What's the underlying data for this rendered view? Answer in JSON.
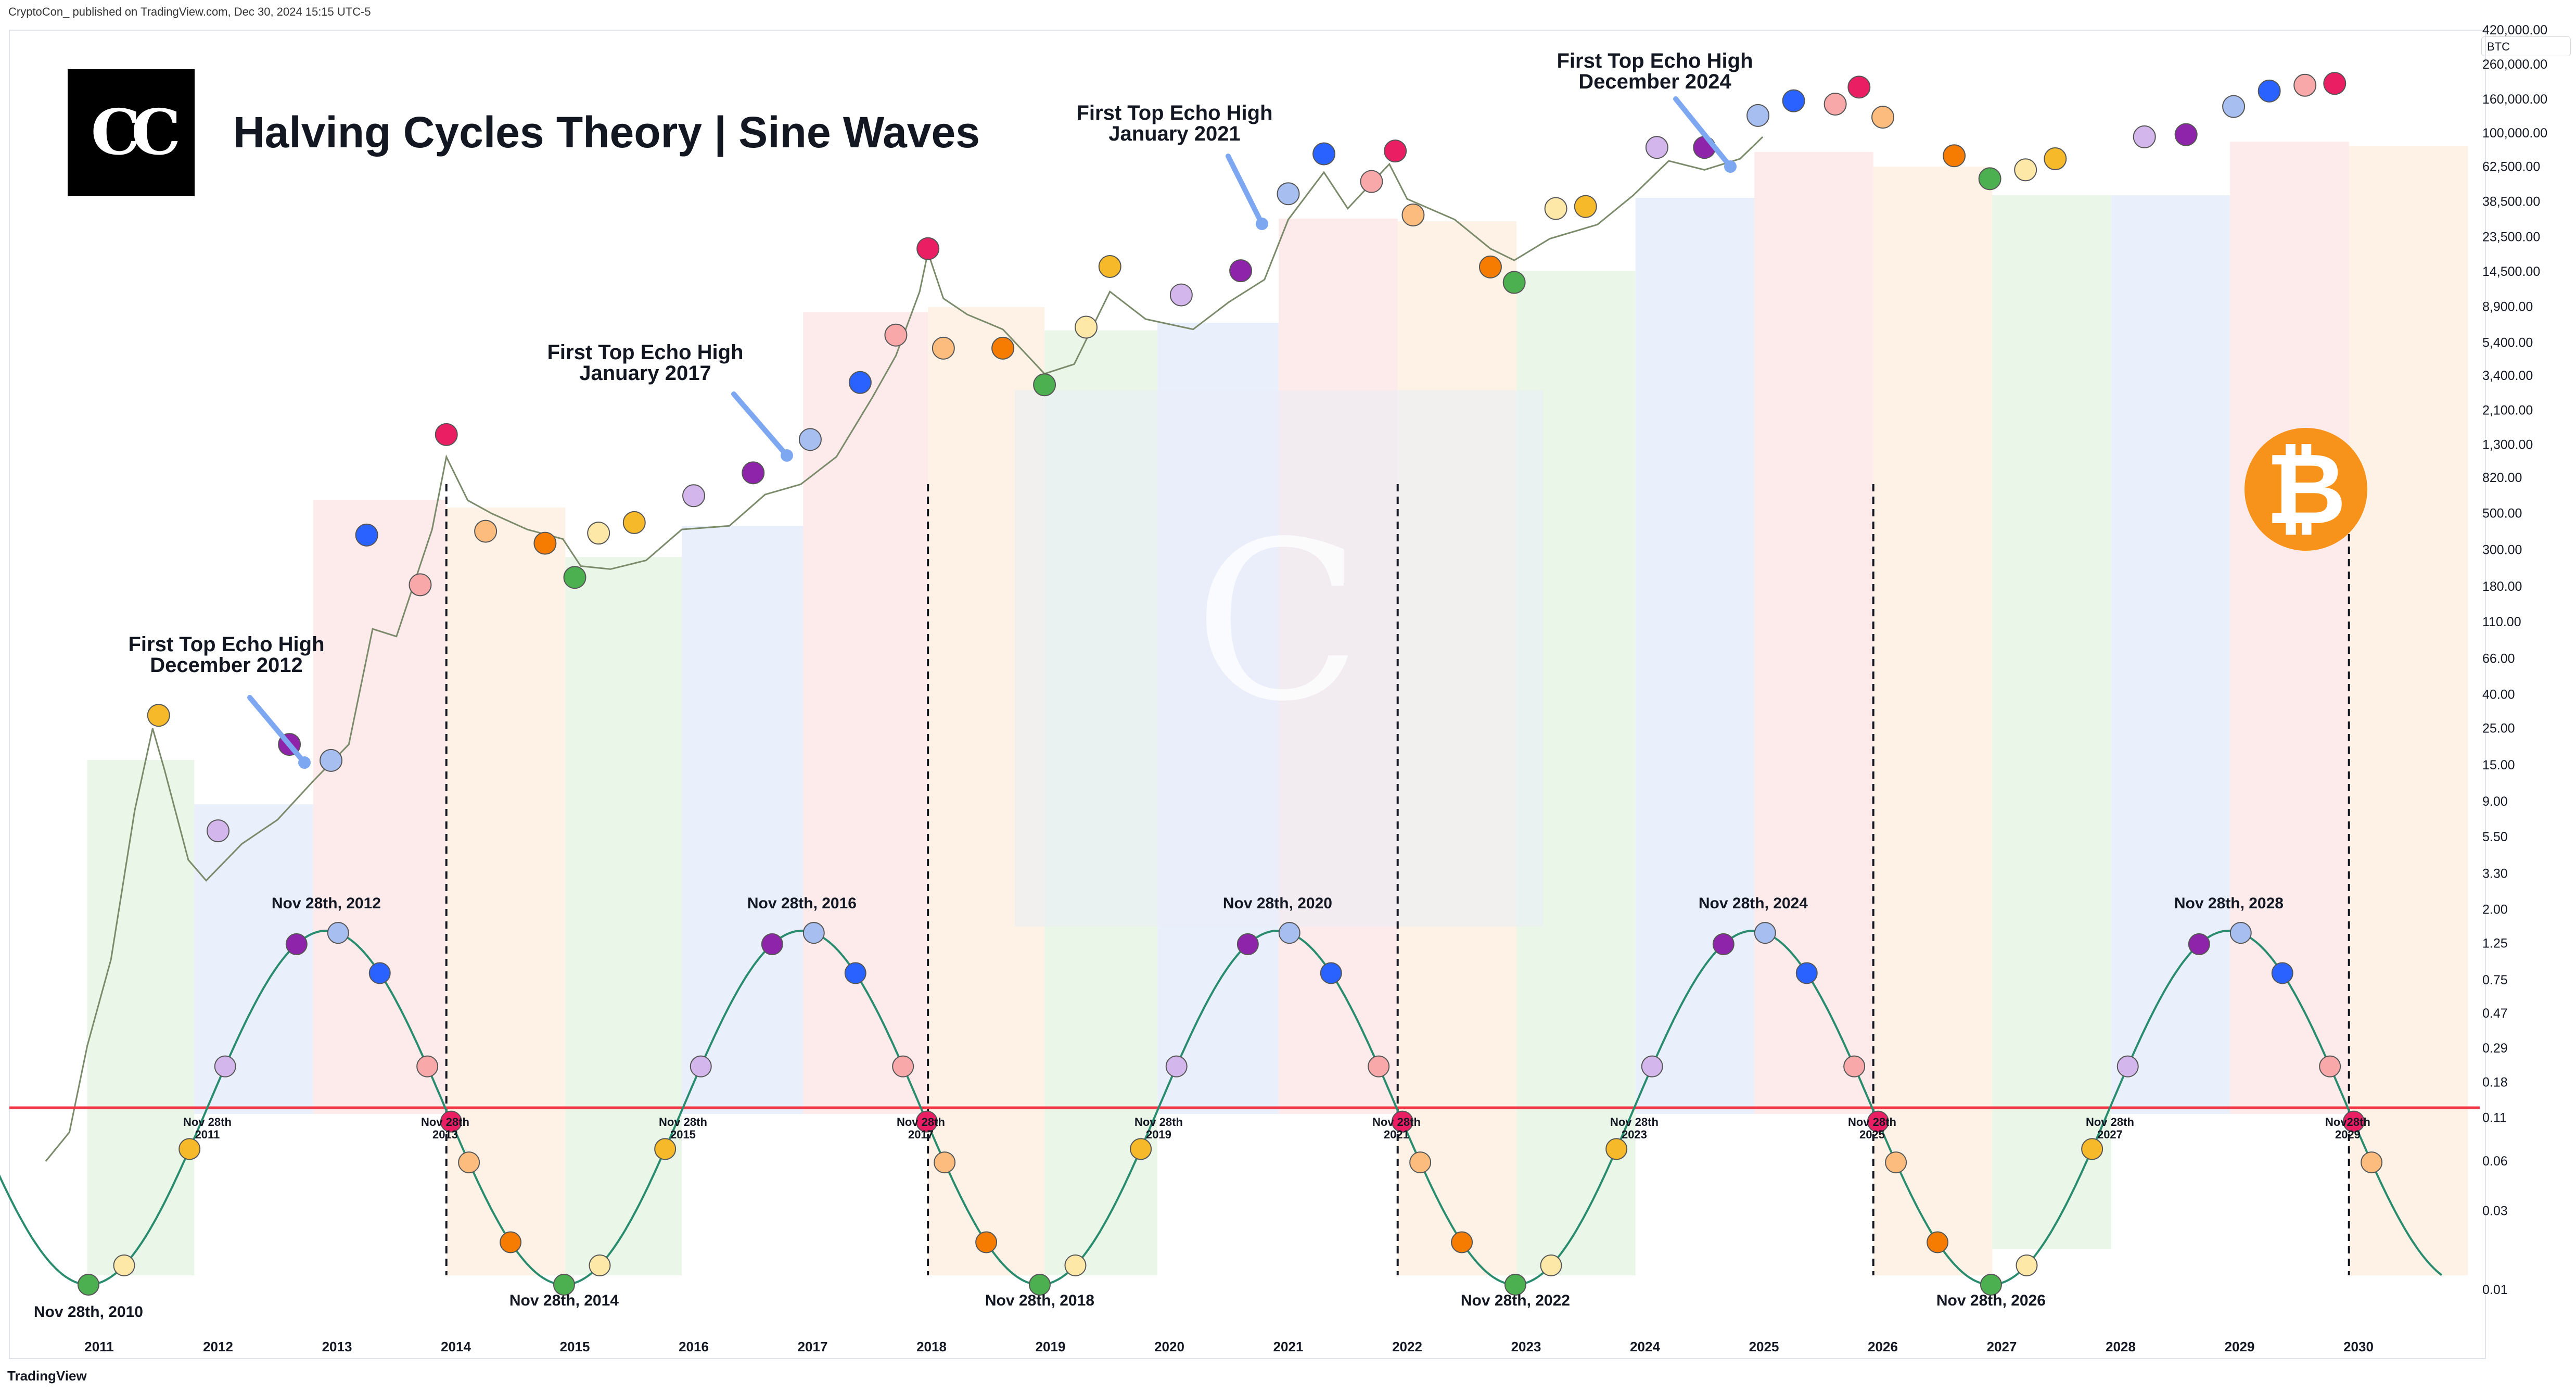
{
  "header": {
    "published": "CryptoCon_ published on TradingView.com, Dec 30, 2024 15:15 UTC-5",
    "title": "Halving Cycles Theory | Sine Waves",
    "logo_text": "CC",
    "ticker": "BTC",
    "footer_logo": "TradingView"
  },
  "colors": {
    "line_red": "#f23645",
    "sine": "#2a8c6e",
    "green_zone": "#e6f4e4",
    "blue_zone": "#e6ecfb",
    "red_zone": "#fde6e8",
    "orange_zone": "#fdf0e0",
    "btc_orange": "#f7931a",
    "arrow": "#7da7f0"
  },
  "echo_labels": [
    {
      "line1": "First Top Echo High",
      "line2": "December 2012"
    },
    {
      "line1": "First Top Echo High",
      "line2": "January 2017"
    },
    {
      "line1": "First Top Echo High",
      "line2": "January 2021"
    },
    {
      "line1": "First Top Echo High",
      "line2": "December 2024"
    }
  ],
  "sine_labels": {
    "peaks": [
      "Nov 28th, 2012",
      "Nov 28th, 2016",
      "Nov 28th, 2020",
      "Nov 28th, 2024",
      "Nov 28th, 2028"
    ],
    "troughs": [
      "Nov 28th, 2010",
      "Nov 28th, 2014",
      "Nov 28th, 2018",
      "Nov 28th, 2022",
      "Nov 28th, 2026"
    ],
    "crossings": [
      "Nov 28th 2011",
      "Nov 28th 2013",
      "Nov 28th 2015",
      "Nov 28th 2017",
      "Nov 28th 2019",
      "Nov 28th 2021",
      "Nov 28th 2023",
      "Nov 28th 2025",
      "Nov 28th 2027",
      "Nov28th 2029"
    ]
  },
  "chart_data": {
    "type": "line",
    "title": "Halving Cycles Theory | Sine Waves",
    "xlabel": "",
    "ylabel": "",
    "y_scale": "log",
    "x_ticks": [
      "2011",
      "2012",
      "2013",
      "2014",
      "2015",
      "2016",
      "2017",
      "2018",
      "2019",
      "2020",
      "2021",
      "2022",
      "2023",
      "2024",
      "2025",
      "2026",
      "2027",
      "2028",
      "2029",
      "2030"
    ],
    "y_ticks": [
      "420,000.00",
      "260,000.00",
      "160,000.00",
      "100,000.00",
      "62,500.00",
      "38,500.00",
      "23,500.00",
      "14,500.00",
      "8,900.00",
      "5,400.00",
      "3,400.00",
      "2,100.00",
      "1,300.00",
      "820.00",
      "500.00",
      "300.00",
      "180.00",
      "110.00",
      "66.00",
      "40.00",
      "25.00",
      "15.00",
      "9.00",
      "5.50",
      "3.30",
      "2.00",
      "1.25",
      "0.75",
      "0.47",
      "0.29",
      "0.18",
      "0.11",
      "0.06",
      "0.03",
      "0.01"
    ],
    "ylim": [
      0.01,
      420000
    ],
    "series": [
      {
        "name": "BTC",
        "x": [
          2010.55,
          2010.75,
          2010.9,
          2011.1,
          2011.3,
          2011.45,
          2011.55,
          2011.75,
          2011.9,
          2012.2,
          2012.5,
          2012.8,
          2013.1,
          2013.3,
          2013.5,
          2013.8,
          2013.92,
          2014.1,
          2014.3,
          2014.6,
          2014.9,
          2015.05,
          2015.3,
          2015.6,
          2015.9,
          2016.3,
          2016.6,
          2016.9,
          2017.2,
          2017.5,
          2017.7,
          2017.9,
          2017.97,
          2018.1,
          2018.3,
          2018.6,
          2018.95,
          2019.2,
          2019.5,
          2019.8,
          2020.2,
          2020.5,
          2020.8,
          2021.0,
          2021.3,
          2021.5,
          2021.85,
          2022.0,
          2022.4,
          2022.7,
          2022.9,
          2023.2,
          2023.6,
          2023.9,
          2024.2,
          2024.5,
          2024.8,
          2024.99
        ],
        "values": [
          0.06,
          0.09,
          0.3,
          1.0,
          8.0,
          25,
          14,
          4,
          3,
          5,
          7,
          12,
          20,
          100,
          90,
          400,
          1100,
          600,
          500,
          400,
          350,
          240,
          230,
          260,
          400,
          420,
          650,
          750,
          1100,
          2500,
          4500,
          11000,
          19000,
          10000,
          8000,
          6500,
          3500,
          4000,
          11000,
          7500,
          6500,
          9500,
          13000,
          30000,
          58000,
          35000,
          65000,
          40000,
          30000,
          20000,
          17000,
          23000,
          28000,
          42000,
          68000,
          60000,
          70000,
          95000
        ]
      }
    ],
    "cycle_dots": [
      {
        "x": 2011.5,
        "y": 30,
        "c": "#f5b929"
      },
      {
        "x": 2012.0,
        "y": 6,
        "c": "#d3b7ec"
      },
      {
        "x": 2012.6,
        "y": 20,
        "c": "#8e24aa"
      },
      {
        "x": 2012.95,
        "y": 16,
        "c": "#a7bef0"
      },
      {
        "x": 2013.25,
        "y": 370,
        "c": "#2962ff"
      },
      {
        "x": 2013.7,
        "y": 185,
        "c": "#f8a8a8"
      },
      {
        "x": 2013.92,
        "y": 1500,
        "c": "#e91e63"
      },
      {
        "x": 2014.25,
        "y": 390,
        "c": "#fbbc7e"
      },
      {
        "x": 2014.75,
        "y": 330,
        "c": "#f57c00"
      },
      {
        "x": 2015.0,
        "y": 205,
        "c": "#4caf50"
      },
      {
        "x": 2015.2,
        "y": 380,
        "c": "#fde8a8"
      },
      {
        "x": 2015.5,
        "y": 440,
        "c": "#f5b929"
      },
      {
        "x": 2016.0,
        "y": 640,
        "c": "#d3b7ec"
      },
      {
        "x": 2016.5,
        "y": 880,
        "c": "#8e24aa"
      },
      {
        "x": 2016.98,
        "y": 1400,
        "c": "#a7bef0"
      },
      {
        "x": 2017.4,
        "y": 3100,
        "c": "#2962ff"
      },
      {
        "x": 2017.7,
        "y": 6000,
        "c": "#f8a8a8"
      },
      {
        "x": 2017.97,
        "y": 20000,
        "c": "#e91e63"
      },
      {
        "x": 2018.1,
        "y": 5000,
        "c": "#fbbc7e"
      },
      {
        "x": 2018.6,
        "y": 5000,
        "c": "#f57c00"
      },
      {
        "x": 2018.95,
        "y": 3000,
        "c": "#4caf50"
      },
      {
        "x": 2019.3,
        "y": 6700,
        "c": "#fde8a8"
      },
      {
        "x": 2019.5,
        "y": 15600,
        "c": "#f5b929"
      },
      {
        "x": 2020.1,
        "y": 10500,
        "c": "#d3b7ec"
      },
      {
        "x": 2020.6,
        "y": 14700,
        "c": "#8e24aa"
      },
      {
        "x": 2021.0,
        "y": 43000,
        "c": "#a7bef0"
      },
      {
        "x": 2021.3,
        "y": 75000,
        "c": "#2962ff"
      },
      {
        "x": 2021.7,
        "y": 51000,
        "c": "#f8a8a8"
      },
      {
        "x": 2021.9,
        "y": 78000,
        "c": "#e91e63"
      },
      {
        "x": 2022.05,
        "y": 32000,
        "c": "#fbbc7e"
      },
      {
        "x": 2022.7,
        "y": 15500,
        "c": "#f57c00"
      },
      {
        "x": 2022.9,
        "y": 12500,
        "c": "#4caf50"
      },
      {
        "x": 2023.25,
        "y": 35000,
        "c": "#fde8a8"
      },
      {
        "x": 2023.5,
        "y": 36000,
        "c": "#f5b929"
      },
      {
        "x": 2024.1,
        "y": 82000,
        "c": "#d3b7ec"
      },
      {
        "x": 2024.5,
        "y": 82000,
        "c": "#8e24aa"
      },
      {
        "x": 2024.95,
        "y": 128000,
        "c": "#a7bef0"
      },
      {
        "x": 2025.25,
        "y": 157000,
        "c": "#2962ff"
      },
      {
        "x": 2025.6,
        "y": 150000,
        "c": "#f8a8a8"
      },
      {
        "x": 2025.8,
        "y": 190000,
        "c": "#e91e63"
      },
      {
        "x": 2026.0,
        "y": 125000,
        "c": "#fbbc7e"
      },
      {
        "x": 2026.6,
        "y": 73000,
        "c": "#f57c00"
      },
      {
        "x": 2026.9,
        "y": 53000,
        "c": "#4caf50"
      },
      {
        "x": 2027.2,
        "y": 60000,
        "c": "#fde8a8"
      },
      {
        "x": 2027.45,
        "y": 70000,
        "c": "#f5b929"
      },
      {
        "x": 2028.2,
        "y": 95000,
        "c": "#d3b7ec"
      },
      {
        "x": 2028.55,
        "y": 98000,
        "c": "#8e24aa"
      },
      {
        "x": 2028.95,
        "y": 145000,
        "c": "#a7bef0"
      },
      {
        "x": 2029.25,
        "y": 180000,
        "c": "#2962ff"
      },
      {
        "x": 2029.55,
        "y": 195000,
        "c": "#f8a8a8"
      },
      {
        "x": 2029.8,
        "y": 200000,
        "c": "#e91e63"
      }
    ]
  }
}
